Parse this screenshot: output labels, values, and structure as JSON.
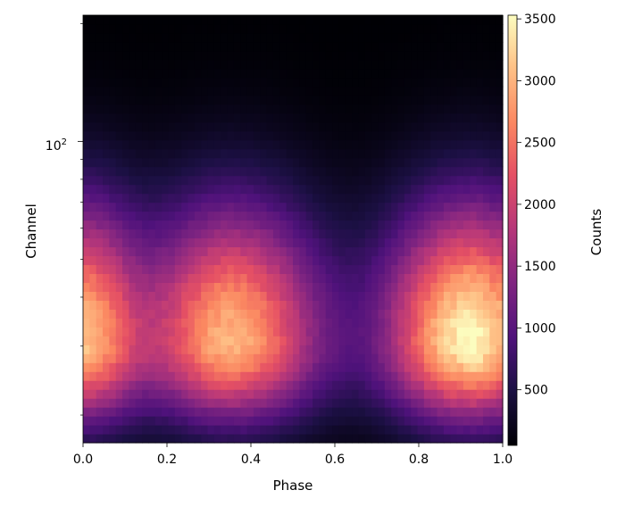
{
  "chart_data": {
    "type": "heatmap",
    "title": "",
    "xlabel": "Phase",
    "ylabel": "Channel",
    "xlim": [
      0.0,
      1.0
    ],
    "ylim": [
      17,
      210
    ],
    "yscale": "log",
    "x_ticks": [
      "0.0",
      "0.2",
      "0.4",
      "0.6",
      "0.8",
      "1.0"
    ],
    "y_major_tick": {
      "base": "10",
      "exponent": "2",
      "value": 100
    },
    "colormap": "magma",
    "colorbar": {
      "label": "Counts",
      "range": [
        50,
        3530
      ],
      "ticks": [
        "500",
        "1000",
        "1500",
        "2000",
        "2500",
        "3000",
        "3500"
      ]
    },
    "grid": false,
    "phase_bins": 64,
    "channel_bins": 48,
    "phase_profile_peaks": [
      {
        "phase": 0.0,
        "counts": 3100
      },
      {
        "phase": 0.35,
        "counts": 3000
      },
      {
        "phase": 0.93,
        "counts": 3500
      }
    ],
    "phase_profile_minima": [
      {
        "phase": 0.16,
        "counts": 1900
      },
      {
        "phase": 0.64,
        "counts": 1000
      }
    ],
    "peak_channel": 31,
    "colors": {
      "background": "#ffffff",
      "axes": "#000000"
    }
  }
}
